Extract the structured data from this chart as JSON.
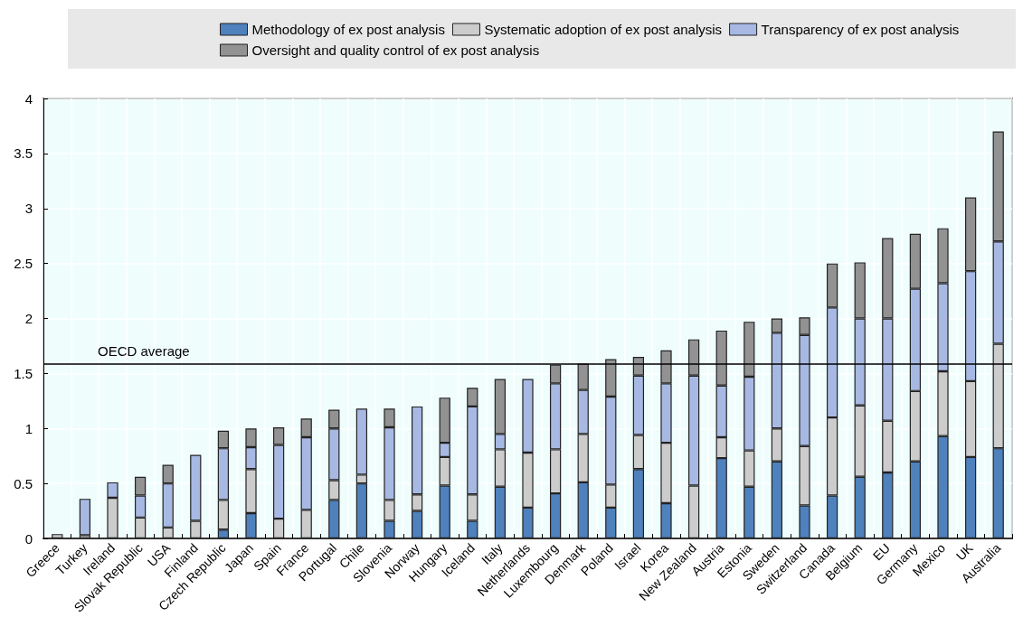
{
  "chart_data": {
    "type": "bar",
    "stacked": true,
    "categories": [
      "Greece",
      "Turkey",
      "Ireland",
      "Slovak Republic",
      "USA",
      "Finland",
      "Czech Republic",
      "Japan",
      "Spain",
      "France",
      "Portugal",
      "Chile",
      "Slovenia",
      "Norway",
      "Hungary",
      "Iceland",
      "Italy",
      "Netherlands",
      "Luxembourg",
      "Denmark",
      "Poland",
      "Israel",
      "Korea",
      "New Zealand",
      "Austria",
      "Estonia",
      "Sweden",
      "Switzerland",
      "Canada",
      "Belgium",
      "EU",
      "Germany",
      "Mexico",
      "UK",
      "Australia"
    ],
    "series": [
      {
        "name": "Methodology of ex post analysis",
        "color": "#4f81bd",
        "values": [
          0,
          0,
          0,
          0,
          0,
          0,
          0.08,
          0.23,
          0,
          0,
          0.35,
          0.5,
          0.16,
          0.25,
          0.48,
          0.16,
          0.47,
          0.28,
          0.41,
          0.51,
          0.28,
          0.63,
          0.32,
          0,
          0.73,
          0.47,
          0.7,
          0.3,
          0.39,
          0.56,
          0.6,
          0.7,
          0.93,
          0.74,
          0.82
        ]
      },
      {
        "name": "Systematic adoption of ex post analysis",
        "color": "#cccccc",
        "values": [
          0.04,
          0.03,
          0.37,
          0.19,
          0.1,
          0.16,
          0.27,
          0.4,
          0.18,
          0.26,
          0.18,
          0.08,
          0.19,
          0.15,
          0.26,
          0.24,
          0.34,
          0.5,
          0.4,
          0.44,
          0.21,
          0.31,
          0.55,
          0.48,
          0.19,
          0.33,
          0.3,
          0.54,
          0.71,
          0.65,
          0.47,
          0.64,
          0.59,
          0.69,
          0.95
        ]
      },
      {
        "name": "Transparency of ex post analysis",
        "color": "#a7b9e3",
        "values": [
          0,
          0.33,
          0.14,
          0.2,
          0.4,
          0.6,
          0.47,
          0.2,
          0.67,
          0.66,
          0.47,
          0.6,
          0.66,
          0.8,
          0.13,
          0.8,
          0.14,
          0.67,
          0.6,
          0.4,
          0.8,
          0.54,
          0.54,
          1.0,
          0.47,
          0.67,
          0.87,
          1.01,
          1.0,
          0.79,
          0.93,
          0.93,
          0.8,
          1.0,
          0.93
        ]
      },
      {
        "name": "Oversight and quality control of ex post analysis",
        "color": "#929292",
        "values": [
          0,
          0,
          0,
          0.17,
          0.17,
          0,
          0.16,
          0.17,
          0.16,
          0.17,
          0.17,
          0,
          0.17,
          0,
          0.41,
          0.17,
          0.5,
          0,
          0.17,
          0.24,
          0.34,
          0.17,
          0.3,
          0.33,
          0.5,
          0.5,
          0.13,
          0.16,
          0.4,
          0.51,
          0.73,
          0.5,
          0.5,
          0.67,
          1.0
        ]
      }
    ],
    "ylim": [
      0,
      4
    ],
    "yticks": [
      0,
      0.5,
      1,
      1.5,
      2,
      2.5,
      3,
      3.5,
      4
    ],
    "ref_lines": [
      {
        "axis": "y",
        "value": 1.59,
        "label": "OECD average",
        "color": "#000000"
      }
    ],
    "grid": true,
    "legend": "top"
  }
}
